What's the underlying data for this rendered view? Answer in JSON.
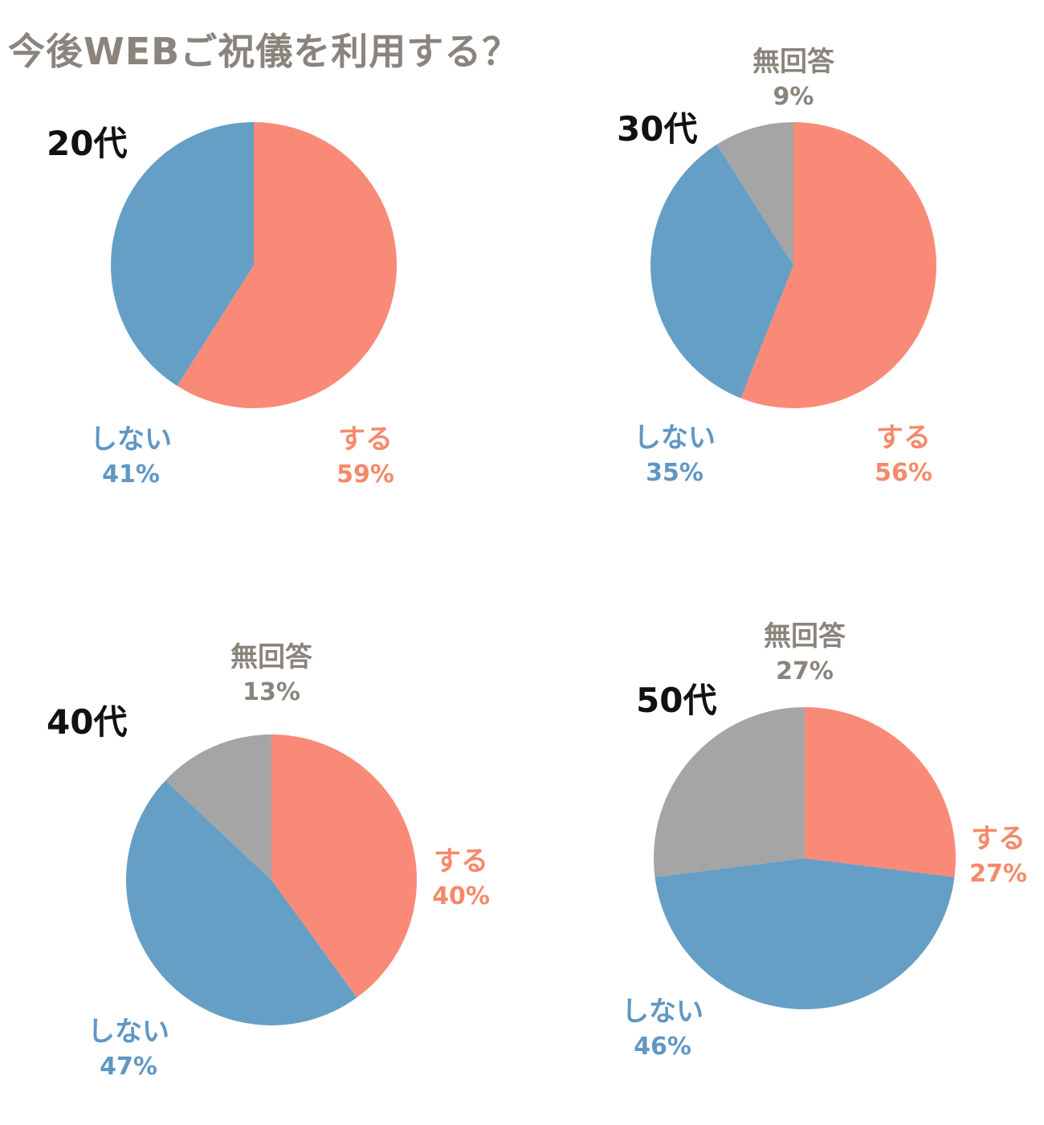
{
  "title": "今後WEBご祝儀を利用する？",
  "colors": {
    "suru": "#fa8a78",
    "shinai": "#669fc5",
    "mukaitou": "#a5a5a5",
    "label_suru": "#f5896a",
    "label_shinai": "#6097c4",
    "label_mukaitou": "#8a847c"
  },
  "chart_data": [
    {
      "type": "pie",
      "title": "20代",
      "slices": [
        {
          "key": "suru",
          "label": "する",
          "value": 59,
          "value_label": "59%"
        },
        {
          "key": "shinai",
          "label": "しない",
          "value": 41,
          "value_label": "41%"
        }
      ]
    },
    {
      "type": "pie",
      "title": "30代",
      "slices": [
        {
          "key": "suru",
          "label": "する",
          "value": 56,
          "value_label": "56%"
        },
        {
          "key": "shinai",
          "label": "しない",
          "value": 35,
          "value_label": "35%"
        },
        {
          "key": "mukaitou",
          "label": "無回答",
          "value": 9,
          "value_label": "9%"
        }
      ]
    },
    {
      "type": "pie",
      "title": "40代",
      "slices": [
        {
          "key": "suru",
          "label": "する",
          "value": 40,
          "value_label": "40%"
        },
        {
          "key": "shinai",
          "label": "しない",
          "value": 47,
          "value_label": "47%"
        },
        {
          "key": "mukaitou",
          "label": "無回答",
          "value": 13,
          "value_label": "13%"
        }
      ]
    },
    {
      "type": "pie",
      "title": "50代",
      "slices": [
        {
          "key": "suru",
          "label": "する",
          "value": 27,
          "value_label": "27%"
        },
        {
          "key": "shinai",
          "label": "しない",
          "value": 46,
          "value_label": "46%"
        },
        {
          "key": "mukaitou",
          "label": "無回答",
          "value": 27,
          "value_label": "27%"
        }
      ]
    }
  ]
}
